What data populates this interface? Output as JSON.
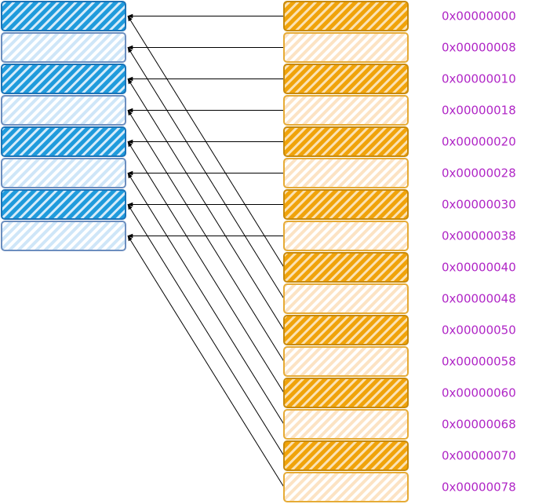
{
  "diagram": {
    "colors": {
      "left_dark_fill": "#1f9bdc",
      "left_dark_stroke": "#1a73b8",
      "left_light_fill": "#cfe6f8",
      "left_light_stroke": "#6c8ebf",
      "right_dark_fill": "#f0a30a",
      "right_dark_stroke": "#c98a0a",
      "right_light_fill": "#fce3c4",
      "right_light_stroke": "#e6ab36",
      "arrow": "#000000",
      "address_text": "#b026c6"
    },
    "left_blocks": [
      {
        "shade": "dark"
      },
      {
        "shade": "light"
      },
      {
        "shade": "dark"
      },
      {
        "shade": "light"
      },
      {
        "shade": "dark"
      },
      {
        "shade": "light"
      },
      {
        "shade": "dark"
      },
      {
        "shade": "light"
      }
    ],
    "right_blocks": [
      {
        "shade": "dark",
        "address": "0x00000000",
        "maps_to": 0
      },
      {
        "shade": "light",
        "address": "0x00000008",
        "maps_to": 1
      },
      {
        "shade": "dark",
        "address": "0x00000010",
        "maps_to": 2
      },
      {
        "shade": "light",
        "address": "0x00000018",
        "maps_to": 3
      },
      {
        "shade": "dark",
        "address": "0x00000020",
        "maps_to": 4
      },
      {
        "shade": "light",
        "address": "0x00000028",
        "maps_to": 5
      },
      {
        "shade": "dark",
        "address": "0x00000030",
        "maps_to": 6
      },
      {
        "shade": "light",
        "address": "0x00000038",
        "maps_to": 7
      },
      {
        "shade": "dark",
        "address": "0x00000040",
        "maps_to": 0
      },
      {
        "shade": "light",
        "address": "0x00000048",
        "maps_to": 1
      },
      {
        "shade": "dark",
        "address": "0x00000050",
        "maps_to": 2
      },
      {
        "shade": "light",
        "address": "0x00000058",
        "maps_to": 3
      },
      {
        "shade": "dark",
        "address": "0x00000060",
        "maps_to": 4
      },
      {
        "shade": "light",
        "address": "0x00000068",
        "maps_to": 5
      },
      {
        "shade": "dark",
        "address": "0x00000070",
        "maps_to": 6
      },
      {
        "shade": "light",
        "address": "0x00000078",
        "maps_to": 7
      }
    ]
  }
}
